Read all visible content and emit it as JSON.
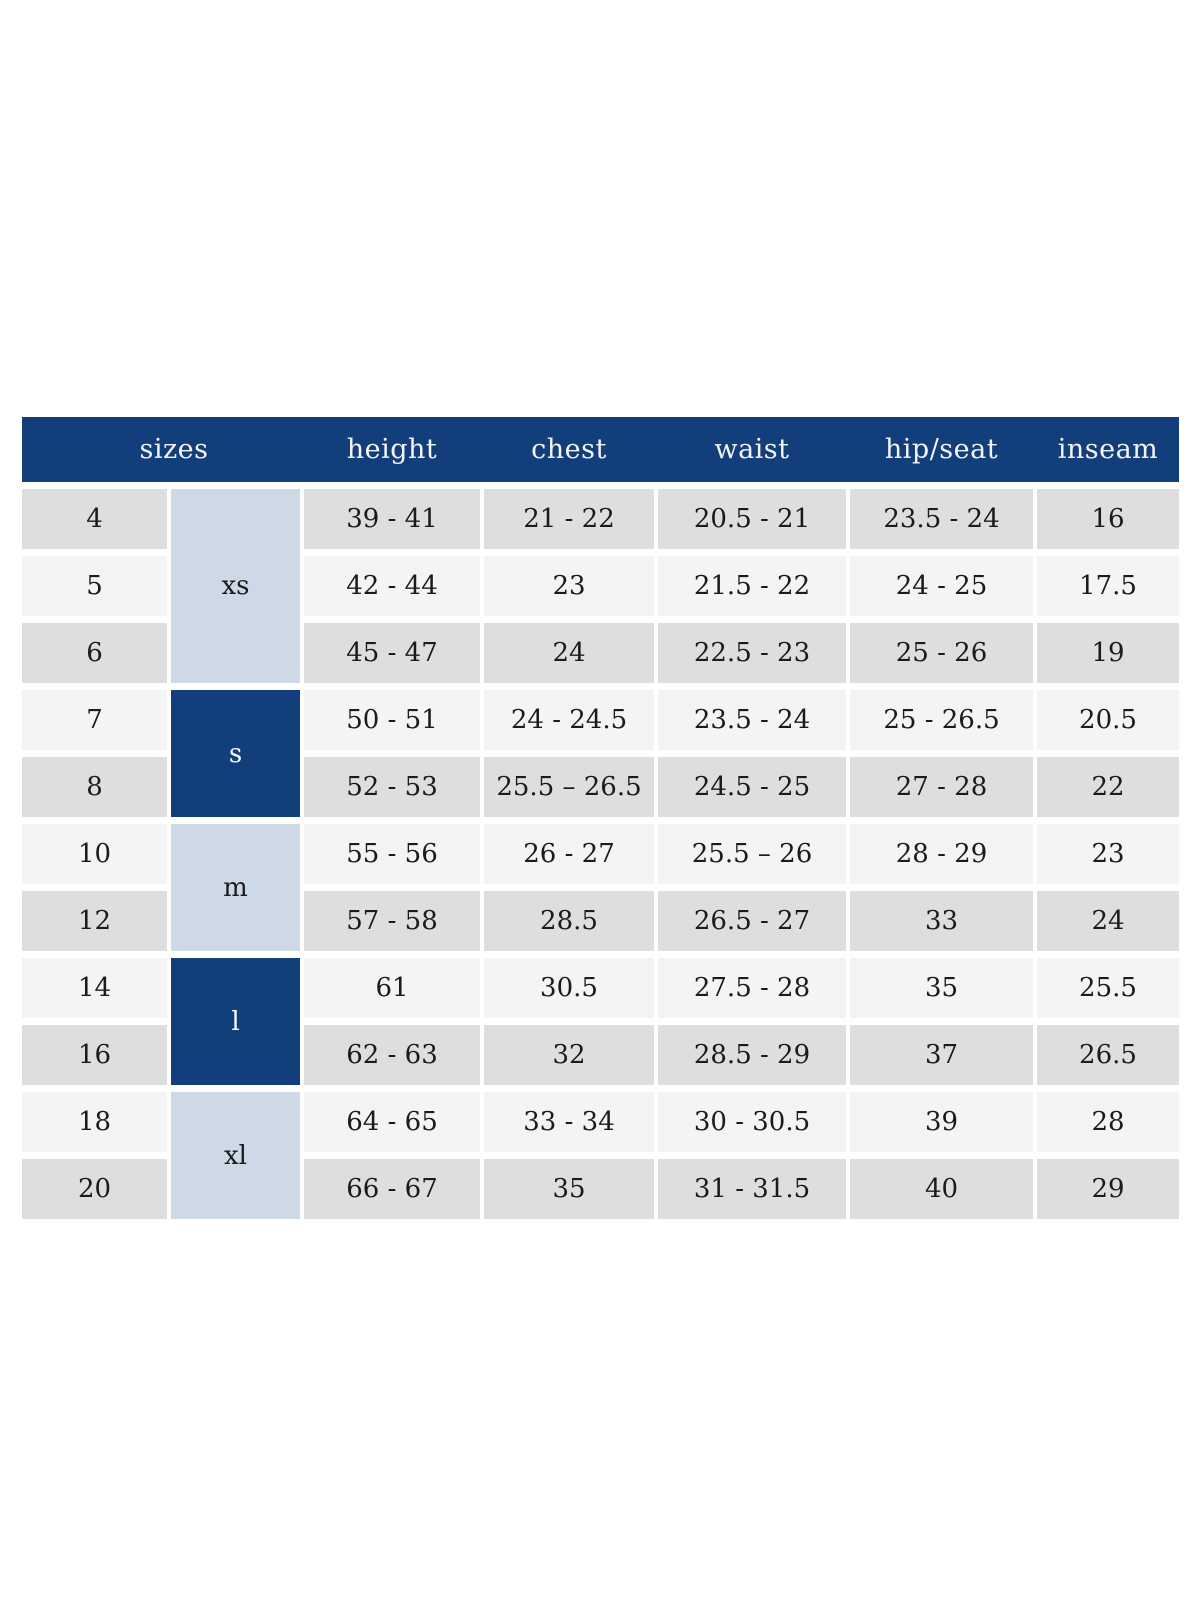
{
  "colors": {
    "header_bg": "#133e7c",
    "header_text": "#f3f4f6",
    "group_dark_bg": "#133e7c",
    "group_light_bg": "#cdd9e6",
    "row_gray": "#dedede",
    "row_light": "#f4f4f4",
    "cell_text": "#1b1b1b"
  },
  "chart_data": {
    "type": "table",
    "columns": [
      "sizes",
      "height",
      "chest",
      "waist",
      "hip/seat",
      "inseam"
    ],
    "size_groups": [
      {
        "label": "xs",
        "rows_spanned": 3,
        "tone": "light"
      },
      {
        "label": "s",
        "rows_spanned": 2,
        "tone": "dark"
      },
      {
        "label": "m",
        "rows_spanned": 2,
        "tone": "light"
      },
      {
        "label": "l",
        "rows_spanned": 2,
        "tone": "dark"
      },
      {
        "label": "xl",
        "rows_spanned": 2,
        "tone": "light"
      }
    ],
    "rows": [
      {
        "size": "4",
        "height": "39 - 41",
        "chest": "21 - 22",
        "waist": "20.5 - 21",
        "hip_seat": "23.5 - 24",
        "inseam": "16"
      },
      {
        "size": "5",
        "height": "42 - 44",
        "chest": "23",
        "waist": "21.5 - 22",
        "hip_seat": "24 - 25",
        "inseam": "17.5"
      },
      {
        "size": "6",
        "height": "45 - 47",
        "chest": "24",
        "waist": "22.5 - 23",
        "hip_seat": "25 - 26",
        "inseam": "19"
      },
      {
        "size": "7",
        "height": "50 - 51",
        "chest": "24 - 24.5",
        "waist": "23.5 - 24",
        "hip_seat": "25 - 26.5",
        "inseam": "20.5"
      },
      {
        "size": "8",
        "height": "52 - 53",
        "chest": "25.5 – 26.5",
        "waist": "24.5 - 25",
        "hip_seat": "27 - 28",
        "inseam": "22"
      },
      {
        "size": "10",
        "height": "55 - 56",
        "chest": "26 - 27",
        "waist": "25.5 – 26",
        "hip_seat": "28 - 29",
        "inseam": "23"
      },
      {
        "size": "12",
        "height": "57 - 58",
        "chest": "28.5",
        "waist": "26.5 - 27",
        "hip_seat": "33",
        "inseam": "24"
      },
      {
        "size": "14",
        "height": "61",
        "chest": "30.5",
        "waist": "27.5 - 28",
        "hip_seat": "35",
        "inseam": "25.5"
      },
      {
        "size": "16",
        "height": "62 - 63",
        "chest": "32",
        "waist": "28.5 - 29",
        "hip_seat": "37",
        "inseam": "26.5"
      },
      {
        "size": "18",
        "height": "64 - 65",
        "chest": "33 - 34",
        "waist": "30 - 30.5",
        "hip_seat": "39",
        "inseam": "28"
      },
      {
        "size": "20",
        "height": "66 - 67",
        "chest": "35",
        "waist": "31 - 31.5",
        "hip_seat": "40",
        "inseam": "29"
      }
    ]
  }
}
